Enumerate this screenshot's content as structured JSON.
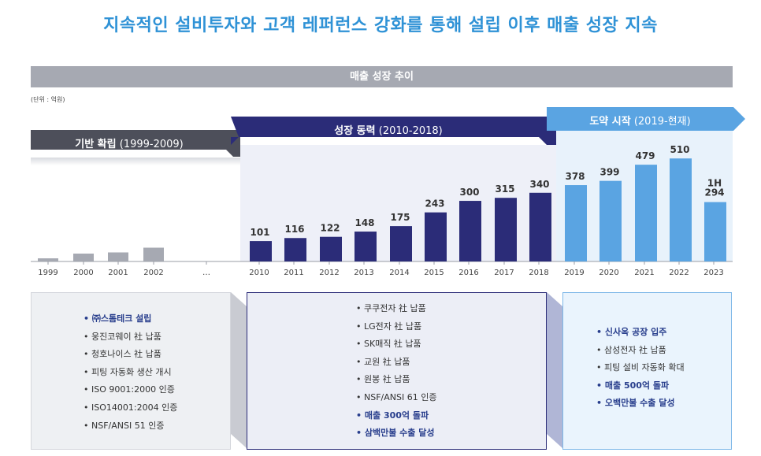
{
  "headline": "지속적인 설비투자와 고객 레퍼런스 강화를 통해 설립 이후 매출 성장 지속",
  "banner": "매출 성장 추이",
  "unit_note": "(단위 : 억원)",
  "phases": [
    {
      "name": "기반 확립",
      "range": "(1999-2009)",
      "color": "#4d4f5a"
    },
    {
      "name": "성장 동력",
      "range": "(2010-2018)",
      "color": "#2b2c78"
    },
    {
      "name": "도약 시작",
      "range": "(2019-현재)",
      "color": "#5aa4e2"
    }
  ],
  "chart_data": {
    "type": "bar",
    "categories": [
      "1999",
      "2000",
      "2001",
      "2002",
      "…",
      "2010",
      "2011",
      "2012",
      "2013",
      "2014",
      "2015",
      "2016",
      "2017",
      "2018",
      "2019",
      "2020",
      "2021",
      "2022",
      "2023"
    ],
    "values": [
      null,
      null,
      null,
      null,
      null,
      101,
      116,
      122,
      148,
      175,
      243,
      300,
      315,
      340,
      378,
      399,
      479,
      510,
      294
    ],
    "early_bars": [
      {
        "year": "1999",
        "level": 0.08
      },
      {
        "year": "2000",
        "level": 0.2
      },
      {
        "year": "2001",
        "level": 0.23
      },
      {
        "year": "2002",
        "level": 0.35
      }
    ],
    "special_labels": {
      "2023": [
        "1H",
        "294"
      ]
    },
    "colors": {
      "early": "#a6a9b2",
      "growth": "#2b2c78",
      "leap": "#5aa4e2"
    }
  },
  "boxes": [
    {
      "items": [
        {
          "text": "㈜스톰테크 설립",
          "hl": true
        },
        {
          "text": "웅진코웨이 社 납품",
          "hl": false
        },
        {
          "text": "청호나이스 社 납품",
          "hl": false
        },
        {
          "text": "피팅 자동화 생산 개시",
          "hl": false
        },
        {
          "text": "ISO 9001:2000 인증",
          "hl": false
        },
        {
          "text": "ISO14001:2004 인증",
          "hl": false
        },
        {
          "text": "NSF/ANSI 51 인증",
          "hl": false
        }
      ]
    },
    {
      "items": [
        {
          "text": "쿠쿠전자 社 납품",
          "hl": false
        },
        {
          "text": "LG전자 社 납품",
          "hl": false
        },
        {
          "text": "SK매직 社 납품",
          "hl": false
        },
        {
          "text": "교원 社 납품",
          "hl": false
        },
        {
          "text": "원봉 社 납품",
          "hl": false
        },
        {
          "text": "NSF/ANSI 61 인증",
          "hl": false
        },
        {
          "text": "매출 300억 돌파",
          "hl": true
        },
        {
          "text": "삼백만불 수출 달성",
          "hl": true
        }
      ]
    },
    {
      "items": [
        {
          "text": "신사옥 공장 입주",
          "hl": true
        },
        {
          "text": "삼성전자 社 납품",
          "hl": false
        },
        {
          "text": "피팅 설비 자동화 확대",
          "hl": false
        },
        {
          "text": "매출 500억 돌파",
          "hl": true
        },
        {
          "text": "오백만불 수출 달성",
          "hl": true
        }
      ]
    }
  ]
}
